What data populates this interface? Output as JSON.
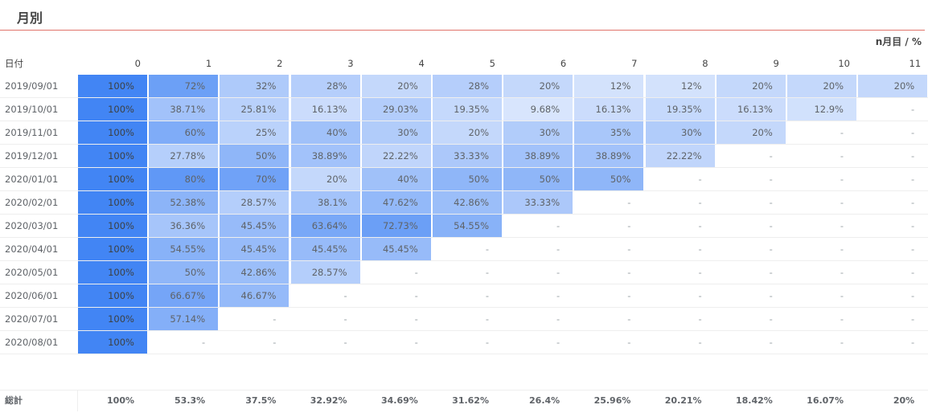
{
  "page": {
    "title": "月別",
    "axis_label": "n月目 / %",
    "date_header": "日付",
    "total_label": "総計"
  },
  "colors": {
    "base": "#4285f4",
    "empty": "#ffffff",
    "rule": "#e0736a"
  },
  "chart_data": {
    "type": "table",
    "title": "月別",
    "columns": [
      "0",
      "1",
      "2",
      "3",
      "4",
      "5",
      "6",
      "7",
      "8",
      "9",
      "10",
      "11"
    ],
    "rows": [
      {
        "date": "2019/09/01",
        "values": [
          "100%",
          "72%",
          "32%",
          "28%",
          "20%",
          "28%",
          "20%",
          "12%",
          "12%",
          "20%",
          "20%",
          "20%"
        ]
      },
      {
        "date": "2019/10/01",
        "values": [
          "100%",
          "38.71%",
          "25.81%",
          "16.13%",
          "29.03%",
          "19.35%",
          "9.68%",
          "16.13%",
          "19.35%",
          "16.13%",
          "12.9%",
          "-"
        ]
      },
      {
        "date": "2019/11/01",
        "values": [
          "100%",
          "60%",
          "25%",
          "40%",
          "30%",
          "20%",
          "30%",
          "35%",
          "30%",
          "20%",
          "-",
          "-"
        ]
      },
      {
        "date": "2019/12/01",
        "values": [
          "100%",
          "27.78%",
          "50%",
          "38.89%",
          "22.22%",
          "33.33%",
          "38.89%",
          "38.89%",
          "22.22%",
          "-",
          "-",
          "-"
        ]
      },
      {
        "date": "2020/01/01",
        "values": [
          "100%",
          "80%",
          "70%",
          "20%",
          "40%",
          "50%",
          "50%",
          "50%",
          "-",
          "-",
          "-",
          "-"
        ]
      },
      {
        "date": "2020/02/01",
        "values": [
          "100%",
          "52.38%",
          "28.57%",
          "38.1%",
          "47.62%",
          "42.86%",
          "33.33%",
          "-",
          "-",
          "-",
          "-",
          "-"
        ]
      },
      {
        "date": "2020/03/01",
        "values": [
          "100%",
          "36.36%",
          "45.45%",
          "63.64%",
          "72.73%",
          "54.55%",
          "-",
          "-",
          "-",
          "-",
          "-",
          "-"
        ]
      },
      {
        "date": "2020/04/01",
        "values": [
          "100%",
          "54.55%",
          "45.45%",
          "45.45%",
          "45.45%",
          "-",
          "-",
          "-",
          "-",
          "-",
          "-",
          "-"
        ]
      },
      {
        "date": "2020/05/01",
        "values": [
          "100%",
          "50%",
          "42.86%",
          "28.57%",
          "-",
          "-",
          "-",
          "-",
          "-",
          "-",
          "-",
          "-"
        ]
      },
      {
        "date": "2020/06/01",
        "values": [
          "100%",
          "66.67%",
          "46.67%",
          "-",
          "-",
          "-",
          "-",
          "-",
          "-",
          "-",
          "-",
          "-"
        ]
      },
      {
        "date": "2020/07/01",
        "values": [
          "100%",
          "57.14%",
          "-",
          "-",
          "-",
          "-",
          "-",
          "-",
          "-",
          "-",
          "-",
          "-"
        ]
      },
      {
        "date": "2020/08/01",
        "values": [
          "100%",
          "-",
          "-",
          "-",
          "-",
          "-",
          "-",
          "-",
          "-",
          "-",
          "-",
          "-"
        ]
      }
    ],
    "totals": [
      "100%",
      "53.3%",
      "37.5%",
      "32.92%",
      "34.69%",
      "31.62%",
      "26.4%",
      "25.96%",
      "20.21%",
      "18.42%",
      "16.07%",
      "20%"
    ]
  }
}
